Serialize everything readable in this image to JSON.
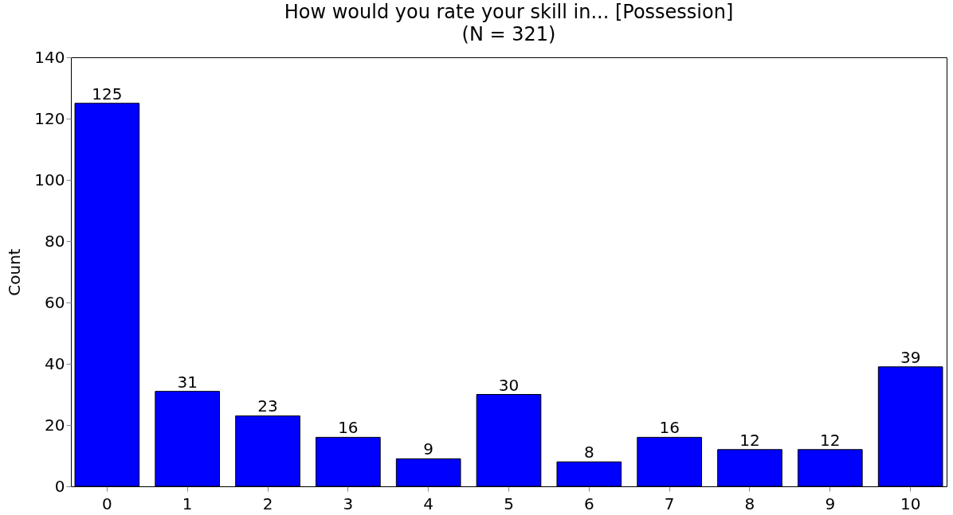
{
  "chart_data": {
    "type": "bar",
    "title": "How would you rate your skill in... [Possession]\n(N = 321)",
    "ylabel": "Count",
    "categories": [
      "0",
      "1",
      "2",
      "3",
      "4",
      "5",
      "6",
      "7",
      "8",
      "9",
      "10"
    ],
    "values": [
      125,
      31,
      23,
      16,
      9,
      30,
      8,
      16,
      12,
      12,
      39
    ],
    "color": "#0000ff",
    "ylim": [
      0,
      140
    ],
    "yticks": [
      0,
      20,
      40,
      60,
      80,
      100,
      120,
      140
    ],
    "grid": false,
    "data_labels": true
  }
}
